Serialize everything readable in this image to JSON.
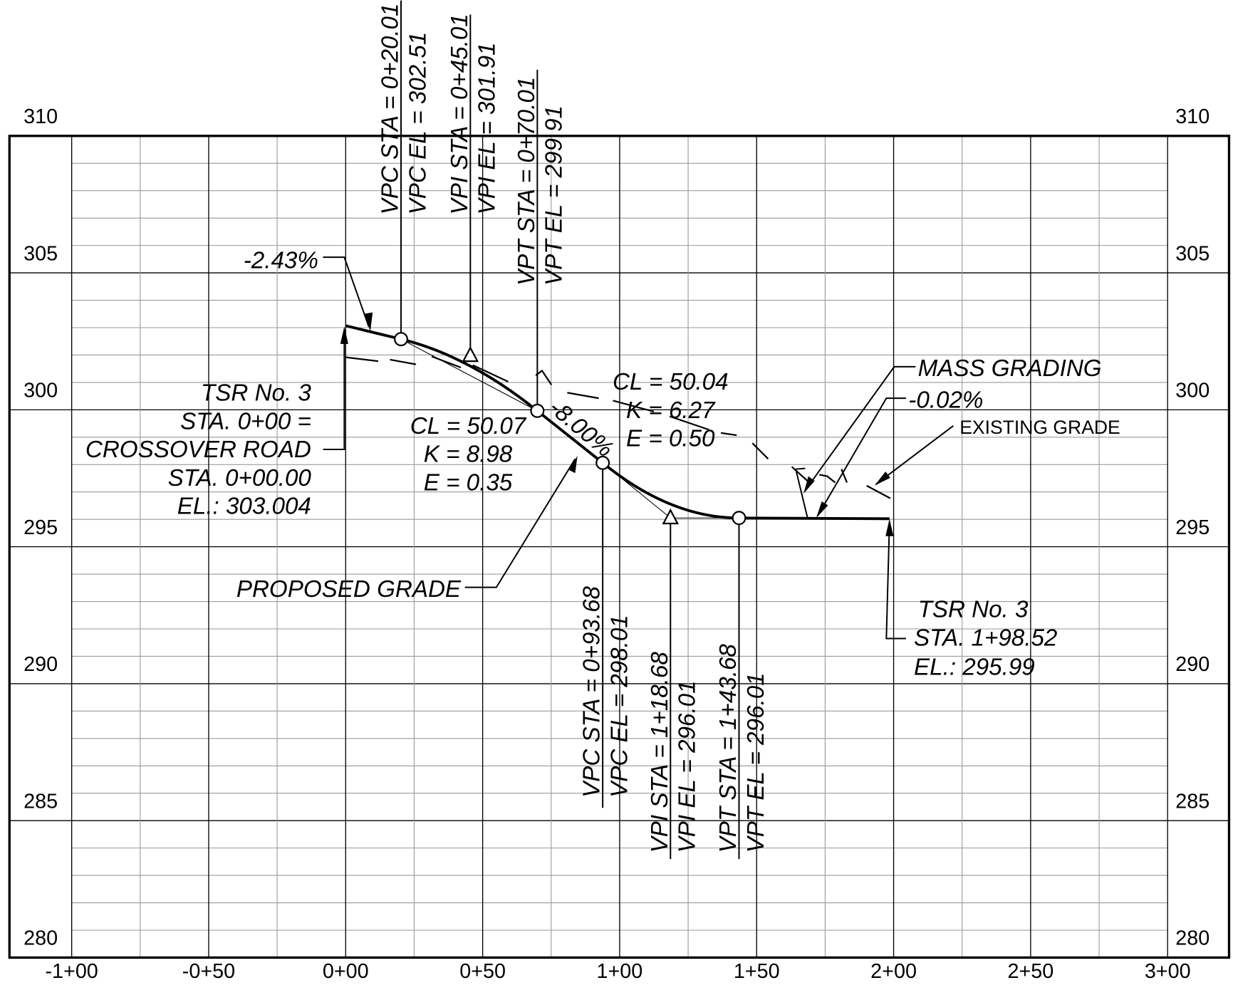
{
  "axes": {
    "y_labels": [
      "310",
      "305",
      "300",
      "295",
      "290",
      "285",
      "280"
    ],
    "x_labels": [
      "-1+00",
      "-0+50",
      "0+00",
      "0+50",
      "1+00",
      "1+50",
      "2+00",
      "2+50",
      "3+00"
    ]
  },
  "labels": {
    "vpc1_sta": "VPC STA = 0+20.01",
    "vpc1_el": "VPC EL = 302.51",
    "vpi1_sta": "VPI STA = 0+45.01",
    "vpi1_el": "VPI EL = 301.91",
    "vpt1_sta": "VPT STA = 0+70.01",
    "vpt1_el": "VPT EL = 299.91",
    "vpc2_sta": "VPC STA = 0+93.68",
    "vpc2_el": "VPC EL = 298.01",
    "vpi2_sta": "VPI STA = 1+18.68",
    "vpi2_el": "VPI EL = 296.01",
    "vpt2_sta": "VPT STA = 1+43.68",
    "vpt2_el": "VPT EL = 296.01",
    "grade1": "-2.43%",
    "grade2": "-8.00%",
    "grade3": "-0.02%",
    "start": [
      "TSR No. 3",
      "STA. 0+00 =",
      "CROSSOVER ROAD",
      "STA. 0+00.00",
      "EL.: 303.004"
    ],
    "curve1": [
      "CL = 50.07",
      "K = 8.98",
      "E = 0.35"
    ],
    "curve2": [
      "CL = 50.04",
      "K = 6.27",
      "E = 0.50"
    ],
    "end": [
      "TSR No. 3",
      "STA. 1+98.52",
      "EL.: 295.99"
    ],
    "proposed": "PROPOSED GRADE",
    "mass": "MASS GRADING",
    "existing": "EXISTING GRADE"
  }
}
